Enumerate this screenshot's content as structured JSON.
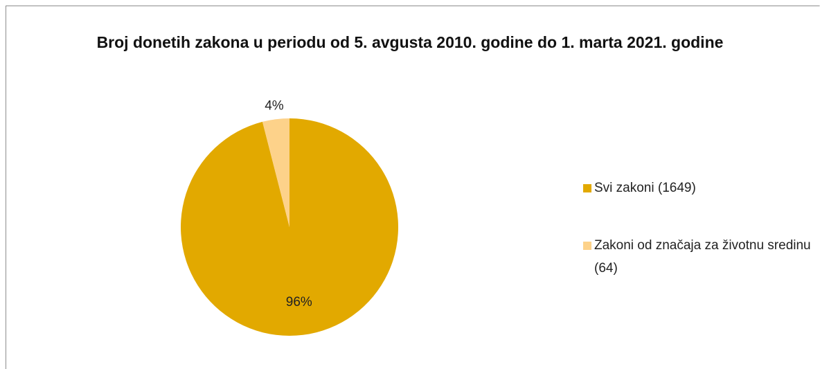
{
  "chart_data": {
    "type": "pie",
    "title": "Broj donetih zakona u periodu od 5. avgusta 2010. godine do 1. marta 2021. godine",
    "categories": [
      "Svi zakoni (1649)",
      "Zakoni od značaja za životnu sredinu (64)"
    ],
    "values": [
      96,
      4
    ],
    "value_labels": [
      "96%",
      "4%"
    ],
    "colors": [
      "#e2a900",
      "#fdd28a"
    ],
    "legend": "right"
  }
}
